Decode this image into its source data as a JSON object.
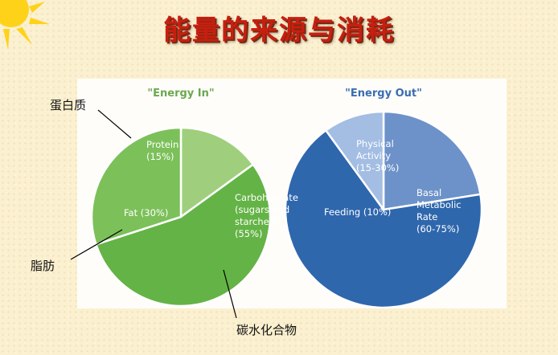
{
  "title": "能量的来源与消耗",
  "chart_data": [
    {
      "type": "pie",
      "title": "\"Energy In\"",
      "slices": [
        {
          "key": "protein",
          "lines": [
            "Protein",
            "(15%)"
          ],
          "value": 15,
          "color": "#9fcf7c"
        },
        {
          "key": "carbohydrate",
          "lines": [
            "Carbohydrate",
            "(sugars and",
            "starches)",
            "(55%)"
          ],
          "value": 55,
          "color": "#64b346"
        },
        {
          "key": "fat",
          "lines": [
            "Fat (30%)"
          ],
          "value": 30,
          "color": "#7cc05a"
        }
      ]
    },
    {
      "type": "pie",
      "title": "\"Energy Out\"",
      "slices": [
        {
          "key": "physical-activity",
          "lines": [
            "Physical",
            "Activity",
            "(15-30%)"
          ],
          "value": 22.5,
          "color": "#6d92c9"
        },
        {
          "key": "basal-metabolic-rate",
          "lines": [
            "Basal",
            "Metabolic",
            "Rate",
            "(60-75%)"
          ],
          "value": 67.5,
          "color": "#2f67ad"
        },
        {
          "key": "feeding",
          "lines": [
            "Feeding (10%)"
          ],
          "value": 10,
          "color": "#a3bde3"
        }
      ]
    }
  ],
  "annotations": {
    "protein": "蛋白质",
    "fat": "脂肪",
    "carbohydrate": "碳水化合物"
  },
  "colors": {
    "title": "#c81e10",
    "energy_in_title": "#6aa84f",
    "energy_out_title": "#3a6db0"
  },
  "icons": {
    "sun": "sun-icon"
  }
}
